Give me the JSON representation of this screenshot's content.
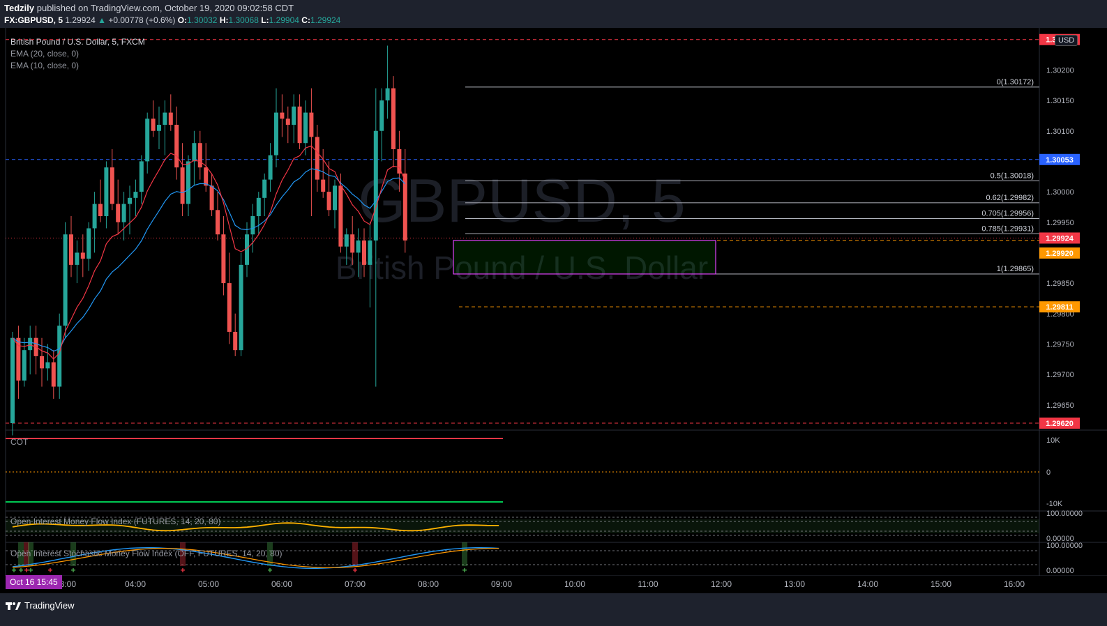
{
  "header": {
    "author": "Tedzily",
    "published_text": "published on TradingView.com, October 19, 2020 09:02:58 CDT",
    "symbol": "FX:GBPUSD, 5",
    "last": "1.29924",
    "change": "+0.00778 (+0.6%)",
    "o_label": "O:",
    "o": "1.30032",
    "h_label": "H:",
    "h": "1.30068",
    "l_label": "L:",
    "l": "1.29904",
    "c_label": "C:",
    "c": "1.29924"
  },
  "legend": {
    "title": "British Pound / U.S. Dollar, 5, FXCM",
    "ema20": "EMA (20, close, 0)",
    "ema10": "EMA (10, close, 0)",
    "cot": "COT",
    "oimfi": "Open Interest Money Flow Index (FUTURES, 14, 20, 80)",
    "oistoch": "Open Interest Stochastic Money Flow Index (OFF, FUTURES, 14, 20, 80)"
  },
  "watermark": {
    "symbol": "GBPUSD, 5",
    "name": "British Pound / U.S. Dollar"
  },
  "currency": "USD",
  "date_badge": "Oct 16   15:45",
  "footer": {
    "brand": "TradingView"
  },
  "colors": {
    "bg": "#000000",
    "up": "#26a69a",
    "down": "#ef5350",
    "ema20": "#2196f3",
    "ema10": "#f23645",
    "fib": "#b2b5be",
    "rect": "#e040fb"
  },
  "chart_data": {
    "type": "candlestick",
    "ylim": [
      1.2962,
      1.3026
    ],
    "yticks": [
      "1.30200",
      "1.30150",
      "1.30100",
      "1.30050",
      "1.30000",
      "1.29950",
      "1.29900",
      "1.29850",
      "1.29800",
      "1.29750",
      "1.29700",
      "1.29650"
    ],
    "xticks": [
      "03:00",
      "04:00",
      "05:00",
      "06:00",
      "07:00",
      "08:00",
      "09:00",
      "10:00",
      "11:00",
      "12:00",
      "13:00",
      "14:00",
      "15:00",
      "16:00"
    ],
    "price_labels": [
      {
        "text": "1.30250",
        "kind": "red"
      },
      {
        "text": "1.30053",
        "kind": "blue"
      },
      {
        "text": "1.29924",
        "kind": "red"
      },
      {
        "text": "1.29920",
        "kind": "orange"
      },
      {
        "text": "1.29811",
        "kind": "orange"
      },
      {
        "text": "1.29620",
        "kind": "red"
      }
    ],
    "fib_levels": [
      {
        "ratio": "0",
        "price": 1.30172,
        "label": "0(1.30172)"
      },
      {
        "ratio": "0.5",
        "price": 1.30018,
        "label": "0.5(1.30018)"
      },
      {
        "ratio": "0.62",
        "price": 1.29982,
        "label": "0.62(1.29982)"
      },
      {
        "ratio": "0.705",
        "price": 1.29956,
        "label": "0.705(1.29956)"
      },
      {
        "ratio": "0.785",
        "price": 1.29931,
        "label": "0.785(1.29931)"
      },
      {
        "ratio": "1",
        "price": 1.29865,
        "label": "1(1.29865)"
      }
    ],
    "candles": [
      [
        1.2962,
        1.2977,
        1.296,
        1.2976
      ],
      [
        1.2976,
        1.2978,
        1.2966,
        1.2969
      ],
      [
        1.2969,
        1.2976,
        1.2968,
        1.2974
      ],
      [
        1.2974,
        1.2978,
        1.297,
        1.2976
      ],
      [
        1.2976,
        1.2978,
        1.297,
        1.2973
      ],
      [
        1.2973,
        1.2976,
        1.2968,
        1.2971
      ],
      [
        1.2971,
        1.2975,
        1.2969,
        1.2972
      ],
      [
        1.2972,
        1.2974,
        1.2966,
        1.2968
      ],
      [
        1.2968,
        1.298,
        1.2966,
        1.2978
      ],
      [
        1.2978,
        1.2995,
        1.2976,
        1.2993
      ],
      [
        1.2993,
        1.2996,
        1.2986,
        1.2988
      ],
      [
        1.2988,
        1.2992,
        1.2985,
        1.299
      ],
      [
        1.299,
        1.2993,
        1.2986,
        1.2989
      ],
      [
        1.2989,
        1.2995,
        1.2987,
        1.2994
      ],
      [
        1.2994,
        1.3,
        1.299,
        1.2998
      ],
      [
        1.2998,
        1.3002,
        1.2995,
        1.2996
      ],
      [
        1.2996,
        1.3005,
        1.2994,
        1.3004
      ],
      [
        1.3004,
        1.3007,
        1.2997,
        1.2998
      ],
      [
        1.2998,
        1.3002,
        1.2993,
        1.2995
      ],
      [
        1.2995,
        1.3,
        1.2992,
        1.2998
      ],
      [
        1.2998,
        1.3001,
        1.2993,
        1.2999
      ],
      [
        1.2999,
        1.3002,
        1.2996,
        1.3
      ],
      [
        1.3,
        1.3006,
        1.2998,
        1.3005
      ],
      [
        1.3005,
        1.3013,
        1.3003,
        1.3012
      ],
      [
        1.3012,
        1.3015,
        1.3009,
        1.301
      ],
      [
        1.301,
        1.3014,
        1.3007,
        1.3011
      ],
      [
        1.3011,
        1.3015,
        1.3006,
        1.3013
      ],
      [
        1.3013,
        1.3016,
        1.301,
        1.3011
      ],
      [
        1.3011,
        1.3014,
        1.3002,
        1.3004
      ],
      [
        1.3004,
        1.3008,
        1.2996,
        1.2998
      ],
      [
        1.2998,
        1.3006,
        1.2996,
        1.3005
      ],
      [
        1.3005,
        1.301,
        1.3001,
        1.3008
      ],
      [
        1.3008,
        1.301,
        1.3002,
        1.3004
      ],
      [
        1.3004,
        1.3008,
        1.3,
        1.3001
      ],
      [
        1.3001,
        1.3003,
        1.2996,
        1.2997
      ],
      [
        1.2997,
        1.3,
        1.2992,
        1.2993
      ],
      [
        1.2993,
        1.2996,
        1.2983,
        1.2985
      ],
      [
        1.2985,
        1.299,
        1.2975,
        1.2977
      ],
      [
        1.2977,
        1.298,
        1.2973,
        1.2974
      ],
      [
        1.2974,
        1.299,
        1.2973,
        1.2988
      ],
      [
        1.2988,
        1.2995,
        1.2986,
        1.2993
      ],
      [
        1.2993,
        1.2998,
        1.299,
        1.2996
      ],
      [
        1.2996,
        1.3,
        1.2993,
        1.2999
      ],
      [
        1.2999,
        1.3003,
        1.2996,
        1.3002
      ],
      [
        1.3002,
        1.3008,
        1.3,
        1.3006
      ],
      [
        1.3006,
        1.3017,
        1.3004,
        1.3013
      ],
      [
        1.3013,
        1.3016,
        1.3009,
        1.3012
      ],
      [
        1.3012,
        1.3014,
        1.3008,
        1.3011
      ],
      [
        1.3011,
        1.3016,
        1.3008,
        1.3014
      ],
      [
        1.3014,
        1.3016,
        1.3007,
        1.3008
      ],
      [
        1.3008,
        1.3015,
        1.3006,
        1.3013
      ],
      [
        1.3013,
        1.3017,
        1.2996,
        1.3009
      ],
      [
        1.3009,
        1.3011,
        1.3,
        1.3002
      ],
      [
        1.3002,
        1.3007,
        1.2999,
        1.3
      ],
      [
        1.3,
        1.3005,
        1.2996,
        1.2997
      ],
      [
        1.2997,
        1.3002,
        1.2994,
        1.3001
      ],
      [
        1.3001,
        1.3003,
        1.299,
        1.2991
      ],
      [
        1.2991,
        1.2994,
        1.2988,
        1.2993
      ],
      [
        1.2993,
        1.2996,
        1.2988,
        1.299
      ],
      [
        1.299,
        1.2994,
        1.2986,
        1.2992
      ],
      [
        1.2992,
        1.2994,
        1.2986,
        1.2988
      ],
      [
        1.2988,
        1.2995,
        1.2981,
        1.2992
      ],
      [
        1.2992,
        1.3017,
        1.2968,
        1.301
      ],
      [
        1.301,
        1.3017,
        1.3005,
        1.3015
      ],
      [
        1.3015,
        1.3024,
        1.3012,
        1.3017
      ],
      [
        1.3017,
        1.3019,
        1.3004,
        1.3007
      ],
      [
        1.3007,
        1.301,
        1.3,
        1.3003
      ],
      [
        1.3003,
        1.3007,
        1.299,
        1.2992
      ]
    ],
    "cot": {
      "yticks": [
        "10K",
        "0",
        "-10K"
      ]
    },
    "oimfi": {
      "yticks": [
        "100.00000",
        "0.00000"
      ],
      "upper": 80,
      "lower": 20
    },
    "oistoch": {
      "yticks": [
        "100.00000",
        "0.00000"
      ],
      "upper": 80,
      "lower": 20
    }
  }
}
